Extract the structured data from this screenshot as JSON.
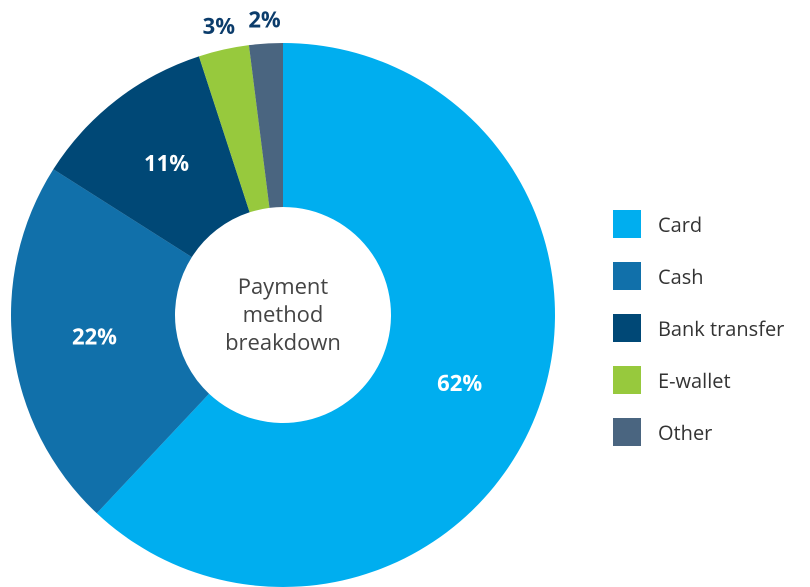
{
  "chart_data": {
    "type": "donut",
    "title": "Payment method breakdown",
    "categories": [
      "Card",
      "Cash",
      "Bank transfer",
      "E-wallet",
      "Other"
    ],
    "values": [
      62,
      22,
      11,
      3,
      2
    ],
    "value_labels": [
      "62%",
      "22%",
      "11%",
      "3%",
      "2%"
    ],
    "colors": [
      "#00aeef",
      "#1170aa",
      "#004876",
      "#97c93d",
      "#4a6580"
    ],
    "legend": "right"
  }
}
